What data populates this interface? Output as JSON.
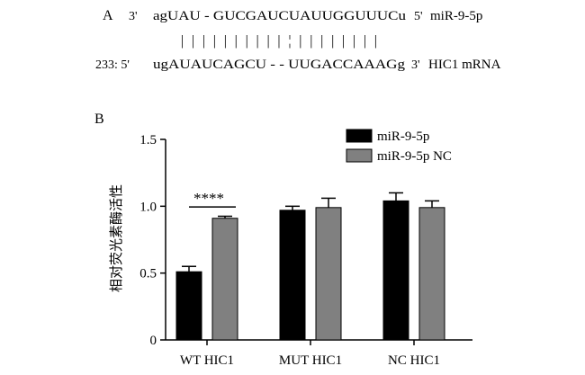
{
  "panel_a": {
    "label": "A",
    "mirna": {
      "prefix": "3'",
      "sequence": "agUAU - GUCGAUCUAUUGGUUUCu",
      "suffix": "5'",
      "name": "miR-9-5p"
    },
    "mrna": {
      "prefix": "233: 5'",
      "sequence": "ugAUAUCAGCU - - UUGACCAAAGg",
      "suffix": "3'",
      "name": "HIC1 mRNA"
    },
    "pairing_marks": "| | |   | | | | |   |   | ¦ | | | | | | | |"
  },
  "chart_data": {
    "type": "bar",
    "panel_label": "B",
    "categories": [
      "WT HIC1",
      "MUT HIC1",
      "NC HIC1"
    ],
    "series": [
      {
        "name": "miR-9-5p",
        "values": [
          0.51,
          0.97,
          1.04
        ],
        "errors": [
          0.04,
          0.03,
          0.06
        ],
        "color": "#000000"
      },
      {
        "name": "miR-9-5p NC",
        "values": [
          0.91,
          0.99,
          0.99
        ],
        "errors": [
          0.015,
          0.07,
          0.05
        ],
        "color": "#808080"
      }
    ],
    "ylabel": "相对荧光素酶活性",
    "xlabel": "",
    "ylim": [
      0,
      1.5
    ],
    "yticks": [
      "0",
      "0.5",
      "1.0",
      "1.5"
    ],
    "significance": {
      "category": "WT HIC1",
      "label": "****"
    },
    "legend_position": "top-right",
    "grid": false
  }
}
